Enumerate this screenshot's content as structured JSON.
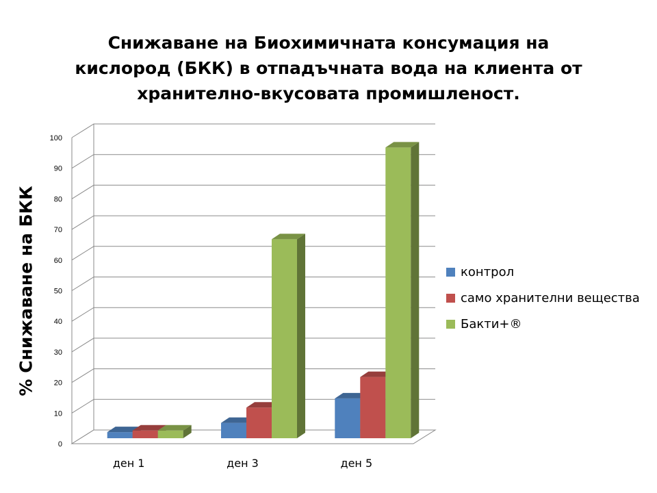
{
  "chart_data": {
    "type": "bar",
    "title_lines": [
      "Снижаване на Биохимичната консумация на",
      "кислород (БКК) в отпадъчната вода на клиента от",
      "хранително-вкусовата промишленост."
    ],
    "ylabel": "% Снижаване на БКК",
    "xlabel": "",
    "categories": [
      "ден 1",
      "ден 3",
      "ден 5"
    ],
    "ylim": [
      0,
      100
    ],
    "yticks": [
      0,
      10,
      20,
      30,
      40,
      50,
      60,
      70,
      80,
      90,
      100
    ],
    "grid": true,
    "legend_position": "right",
    "series": [
      {
        "name": "контрол",
        "values": [
          2,
          5,
          13
        ],
        "color": "#4F81BD"
      },
      {
        "name": "само хранителни вещества",
        "values": [
          2.5,
          10,
          20
        ],
        "color": "#C0504D"
      },
      {
        "name": "Бакти+®",
        "values": [
          2.5,
          65,
          95
        ],
        "color": "#9BBB59"
      }
    ]
  }
}
